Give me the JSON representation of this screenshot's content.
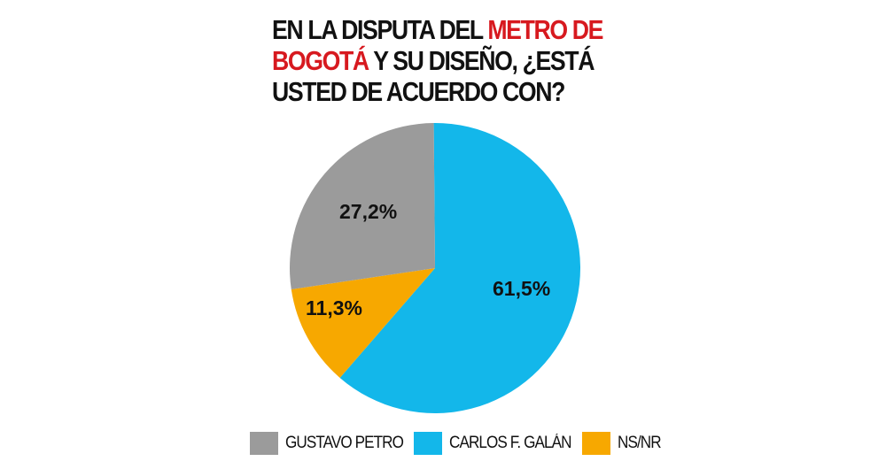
{
  "title": {
    "line1_black": "EN LA DISPUTA DEL ",
    "line1_red": "METRO DE",
    "line2_red": "BOGOTÁ",
    "line2_black": " Y SU DISEÑO, ¿ESTÁ",
    "line3_black": "USTED DE ACUERDO CON?"
  },
  "colors": {
    "accent_red": "#d7191f",
    "gray": "#9b9b9b",
    "blue": "#13b7ea",
    "orange": "#f7a800"
  },
  "slices": [
    {
      "label": "61,5%",
      "name": "CARLOS F. GALÁN",
      "value": 61.5,
      "color": "#13b7ea"
    },
    {
      "label": "11,3%",
      "name": "NS/NR",
      "value": 11.3,
      "color": "#f7a800"
    },
    {
      "label": "27,2%",
      "name": "GUSTAVO PETRO",
      "value": 27.2,
      "color": "#9b9b9b"
    }
  ],
  "legend": [
    {
      "label": "GUSTAVO PETRO",
      "color": "#9b9b9b"
    },
    {
      "label": "CARLOS F. GALÁN",
      "color": "#13b7ea"
    },
    {
      "label": "NS/NR",
      "color": "#f7a800"
    }
  ],
  "chart_data": {
    "type": "pie",
    "title": "EN LA DISPUTA DEL METRO DE BOGOTÁ Y SU DISEÑO, ¿ESTÁ USTED DE ACUERDO CON?",
    "categories": [
      "CARLOS F. GALÁN",
      "NS/NR",
      "GUSTAVO PETRO"
    ],
    "values": [
      61.5,
      11.3,
      27.2
    ],
    "data_labels": [
      "61,5%",
      "11,3%",
      "27,2%"
    ],
    "colors": [
      "#13b7ea",
      "#f7a800",
      "#9b9b9b"
    ],
    "legend_position": "bottom",
    "legend_order": [
      "GUSTAVO PETRO",
      "CARLOS F. GALÁN",
      "NS/NR"
    ]
  }
}
